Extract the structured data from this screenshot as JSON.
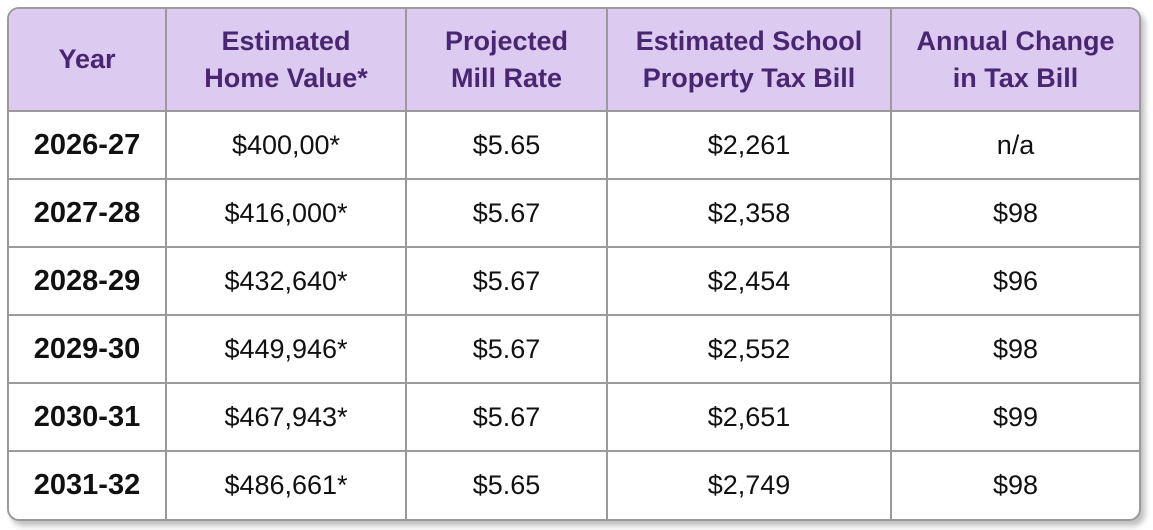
{
  "table": {
    "headers": [
      {
        "line1": "Year",
        "line2": ""
      },
      {
        "line1": "Estimated",
        "line2": "Home Value*"
      },
      {
        "line1": "Projected",
        "line2": "Mill Rate"
      },
      {
        "line1": "Estimated School",
        "line2": "Property Tax Bill"
      },
      {
        "line1": "Annual Change",
        "line2": "in Tax Bill"
      }
    ],
    "rows": [
      {
        "year": "2026-27",
        "home_value": "$400,00*",
        "mill_rate": "$5.65",
        "tax_bill": "$2,261",
        "annual_change": "n/a"
      },
      {
        "year": "2027-28",
        "home_value": "$416,000*",
        "mill_rate": "$5.67",
        "tax_bill": "$2,358",
        "annual_change": "$98"
      },
      {
        "year": "2028-29",
        "home_value": "$432,640*",
        "mill_rate": "$5.67",
        "tax_bill": "$2,454",
        "annual_change": "$96"
      },
      {
        "year": "2029-30",
        "home_value": "$449,946*",
        "mill_rate": "$5.67",
        "tax_bill": "$2,552",
        "annual_change": "$98"
      },
      {
        "year": "2030-31",
        "home_value": "$467,943*",
        "mill_rate": "$5.67",
        "tax_bill": "$2,651",
        "annual_change": "$99"
      },
      {
        "year": "2031-32",
        "home_value": "$486,661*",
        "mill_rate": "$5.65",
        "tax_bill": "$2,749",
        "annual_change": "$98"
      }
    ],
    "colors": {
      "header_bg": "#dccaf0",
      "header_text": "#4a2672",
      "border": "#9a9a9a"
    }
  }
}
